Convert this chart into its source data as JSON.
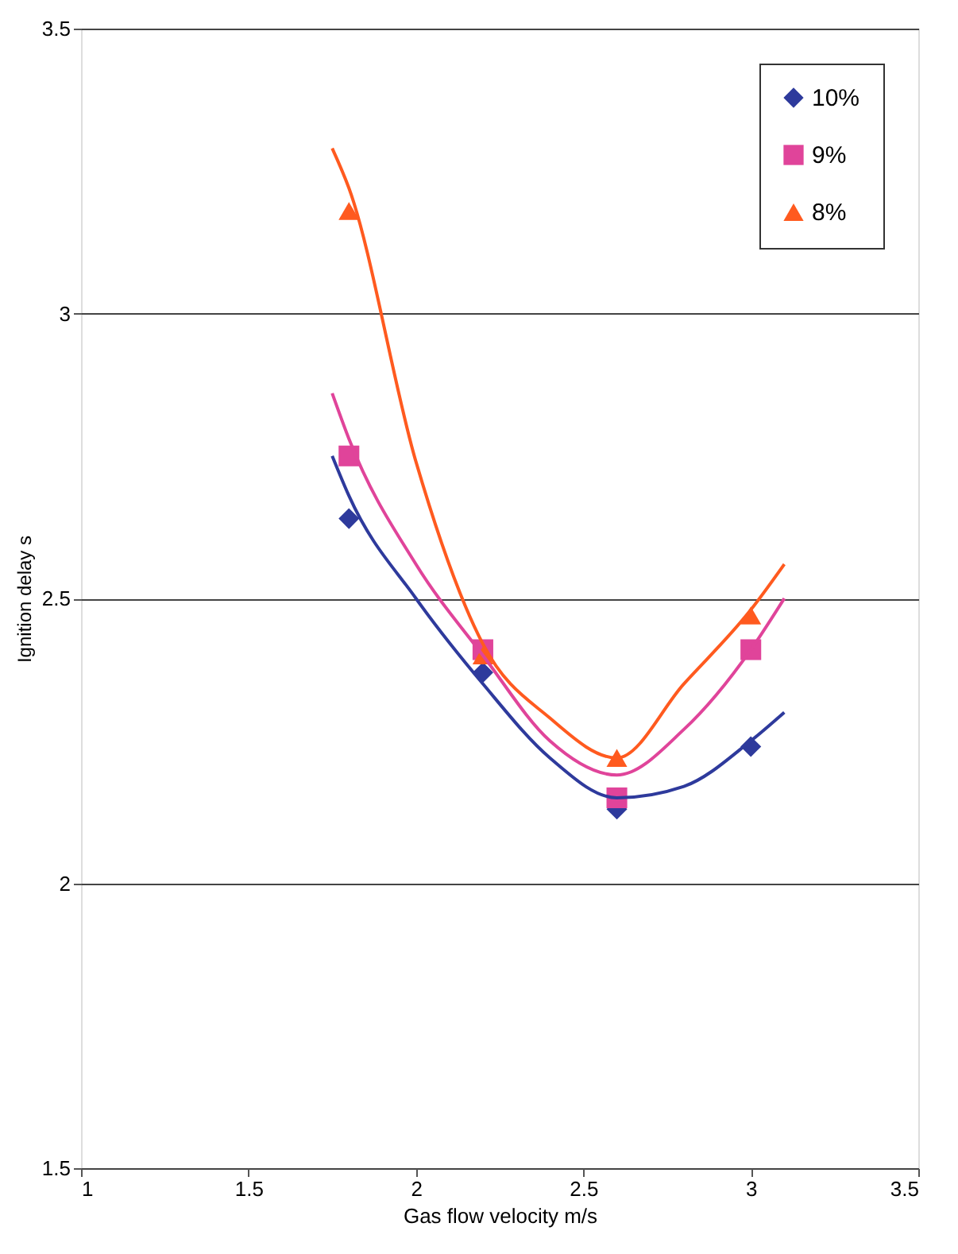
{
  "chart_data": {
    "type": "scatter",
    "xlabel": "Gas flow velocity  m/s",
    "ylabel": "Ignition delay  s",
    "xlim": [
      1,
      3.5
    ],
    "xticks": [
      1,
      1.5,
      2,
      2.5,
      3,
      3.5
    ],
    "ylim": [
      1.5,
      3.5
    ],
    "yticks": [
      1.5,
      2,
      2.5,
      3,
      3.5
    ],
    "grid": "y",
    "legend": "top right",
    "series": [
      {
        "name": "10%",
        "marker": "diamond",
        "color": "#2e3a9c",
        "x": [
          1.8,
          2.2,
          2.6,
          3.0
        ],
        "values": [
          2.64,
          2.37,
          2.13,
          2.24
        ]
      },
      {
        "name": "9%",
        "marker": "square",
        "color": "#e0449a",
        "x": [
          1.8,
          2.2,
          2.6,
          3.0
        ],
        "values": [
          2.75,
          2.41,
          2.15,
          2.41
        ]
      },
      {
        "name": "8%",
        "marker": "triangle",
        "color": "#ff5a1f",
        "x": [
          1.8,
          2.2,
          2.6,
          3.0
        ],
        "values": [
          3.18,
          2.4,
          2.22,
          2.47
        ]
      },
      {
        "type": "line",
        "marker": "none",
        "color": "#2e3a9c",
        "x": [
          1.75,
          1.8,
          2.0,
          2.2,
          2.4,
          2.6,
          2.8,
          3.0,
          3.1
        ],
        "values": [
          2.75,
          2.68,
          2.5,
          2.35,
          2.22,
          2.15,
          2.17,
          2.25,
          2.3
        ]
      },
      {
        "type": "line",
        "marker": "none",
        "color": "#e0449a",
        "x": [
          1.75,
          1.8,
          2.0,
          2.2,
          2.4,
          2.6,
          2.8,
          3.0,
          3.1
        ],
        "values": [
          2.86,
          2.78,
          2.56,
          2.4,
          2.25,
          2.19,
          2.27,
          2.41,
          2.5
        ]
      },
      {
        "type": "line",
        "marker": "none",
        "color": "#ff5a1f",
        "x": [
          1.75,
          1.8,
          2.0,
          2.2,
          2.4,
          2.6,
          2.8,
          3.0,
          3.1
        ],
        "values": [
          3.29,
          3.22,
          2.74,
          2.42,
          2.29,
          2.22,
          2.35,
          2.48,
          2.56
        ]
      }
    ]
  }
}
